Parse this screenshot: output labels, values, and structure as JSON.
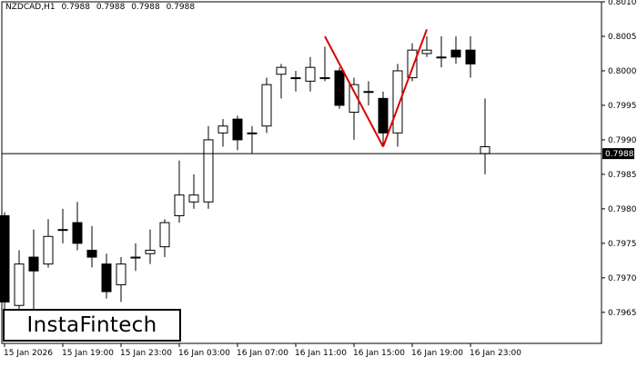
{
  "header": {
    "symbol": "NZDCAD,H1",
    "open": "0.7988",
    "high": "0.7988",
    "low": "0.7988",
    "close": "0.7988"
  },
  "logo": {
    "text": "InstaFintech"
  },
  "colors": {
    "background": "#ffffff",
    "candle_bull_body": "#ffffff",
    "candle_bear_body": "#000000",
    "pattern_line": "#dd0000",
    "price_line": "#000000",
    "price_label_bg": "#000000",
    "price_label_text": "#ffffff"
  },
  "chart_data": {
    "type": "candlestick",
    "y_range": [
      0.79605,
      0.801
    ],
    "y_ticks": [
      "0.8010",
      "0.8005",
      "0.8000",
      "0.7995",
      "0.7990",
      "0.7985",
      "0.7980",
      "0.7975",
      "0.7970",
      "0.7965"
    ],
    "x_labels": [
      "15 Jan 2026",
      "15 Jan 19:00",
      "15 Jan 23:00",
      "16 Jan 03:00",
      "16 Jan 07:00",
      "16 Jan 11:00",
      "16 Jan 15:00",
      "16 Jan 19:00",
      "16 Jan 23:00"
    ],
    "current_price": 0.7988,
    "current_price_label": "0.7988",
    "candles": [
      {
        "o": 0.7979,
        "h": 0.79795,
        "l": 0.7965,
        "c": 0.79665
      },
      {
        "o": 0.7966,
        "h": 0.7974,
        "l": 0.79645,
        "c": 0.7972
      },
      {
        "o": 0.7973,
        "h": 0.7977,
        "l": 0.79655,
        "c": 0.7971
      },
      {
        "o": 0.7972,
        "h": 0.79785,
        "l": 0.79715,
        "c": 0.7976
      },
      {
        "o": 0.7977,
        "h": 0.798,
        "l": 0.7975,
        "c": 0.7977
      },
      {
        "o": 0.7978,
        "h": 0.7981,
        "l": 0.7974,
        "c": 0.7975
      },
      {
        "o": 0.7974,
        "h": 0.79775,
        "l": 0.79715,
        "c": 0.7973
      },
      {
        "o": 0.7972,
        "h": 0.79735,
        "l": 0.7967,
        "c": 0.7968
      },
      {
        "o": 0.7969,
        "h": 0.7973,
        "l": 0.79665,
        "c": 0.7972
      },
      {
        "o": 0.7973,
        "h": 0.7975,
        "l": 0.7971,
        "c": 0.7973
      },
      {
        "o": 0.79735,
        "h": 0.7977,
        "l": 0.7972,
        "c": 0.7974
      },
      {
        "o": 0.79745,
        "h": 0.79785,
        "l": 0.7973,
        "c": 0.7978
      },
      {
        "o": 0.7979,
        "h": 0.7987,
        "l": 0.7978,
        "c": 0.7982
      },
      {
        "o": 0.7981,
        "h": 0.7985,
        "l": 0.798,
        "c": 0.7982
      },
      {
        "o": 0.7981,
        "h": 0.7992,
        "l": 0.798,
        "c": 0.799
      },
      {
        "o": 0.7991,
        "h": 0.7993,
        "l": 0.7989,
        "c": 0.7992
      },
      {
        "o": 0.7993,
        "h": 0.79935,
        "l": 0.79885,
        "c": 0.799
      },
      {
        "o": 0.7991,
        "h": 0.7992,
        "l": 0.7988,
        "c": 0.7991
      },
      {
        "o": 0.7992,
        "h": 0.7999,
        "l": 0.7991,
        "c": 0.7998
      },
      {
        "o": 0.79995,
        "h": 0.8001,
        "l": 0.7996,
        "c": 0.80005
      },
      {
        "o": 0.7999,
        "h": 0.8,
        "l": 0.7997,
        "c": 0.7999
      },
      {
        "o": 0.79985,
        "h": 0.8002,
        "l": 0.7997,
        "c": 0.80005
      },
      {
        "o": 0.7999,
        "h": 0.80035,
        "l": 0.79985,
        "c": 0.7999
      },
      {
        "o": 0.8,
        "h": 0.80005,
        "l": 0.79945,
        "c": 0.7995
      },
      {
        "o": 0.7994,
        "h": 0.7999,
        "l": 0.799,
        "c": 0.7998
      },
      {
        "o": 0.7997,
        "h": 0.79985,
        "l": 0.7995,
        "c": 0.7997
      },
      {
        "o": 0.7996,
        "h": 0.7997,
        "l": 0.7989,
        "c": 0.7991
      },
      {
        "o": 0.7991,
        "h": 0.8001,
        "l": 0.7989,
        "c": 0.8
      },
      {
        "o": 0.7999,
        "h": 0.8004,
        "l": 0.79985,
        "c": 0.8003
      },
      {
        "o": 0.80025,
        "h": 0.8005,
        "l": 0.8002,
        "c": 0.8003
      },
      {
        "o": 0.8002,
        "h": 0.8005,
        "l": 0.80005,
        "c": 0.8002
      },
      {
        "o": 0.8003,
        "h": 0.8005,
        "l": 0.8001,
        "c": 0.8002
      },
      {
        "o": 0.8003,
        "h": 0.8005,
        "l": 0.7999,
        "c": 0.8001
      },
      {
        "o": 0.7988,
        "h": 0.7996,
        "l": 0.7985,
        "c": 0.7989
      }
    ],
    "pattern_lines": [
      {
        "from": {
          "candle": 22,
          "price": 0.8005
        },
        "to": {
          "candle": 26,
          "price": 0.7989
        }
      },
      {
        "from": {
          "candle": 26,
          "price": 0.7989
        },
        "to": {
          "candle": 29,
          "price": 0.8006
        }
      }
    ]
  }
}
